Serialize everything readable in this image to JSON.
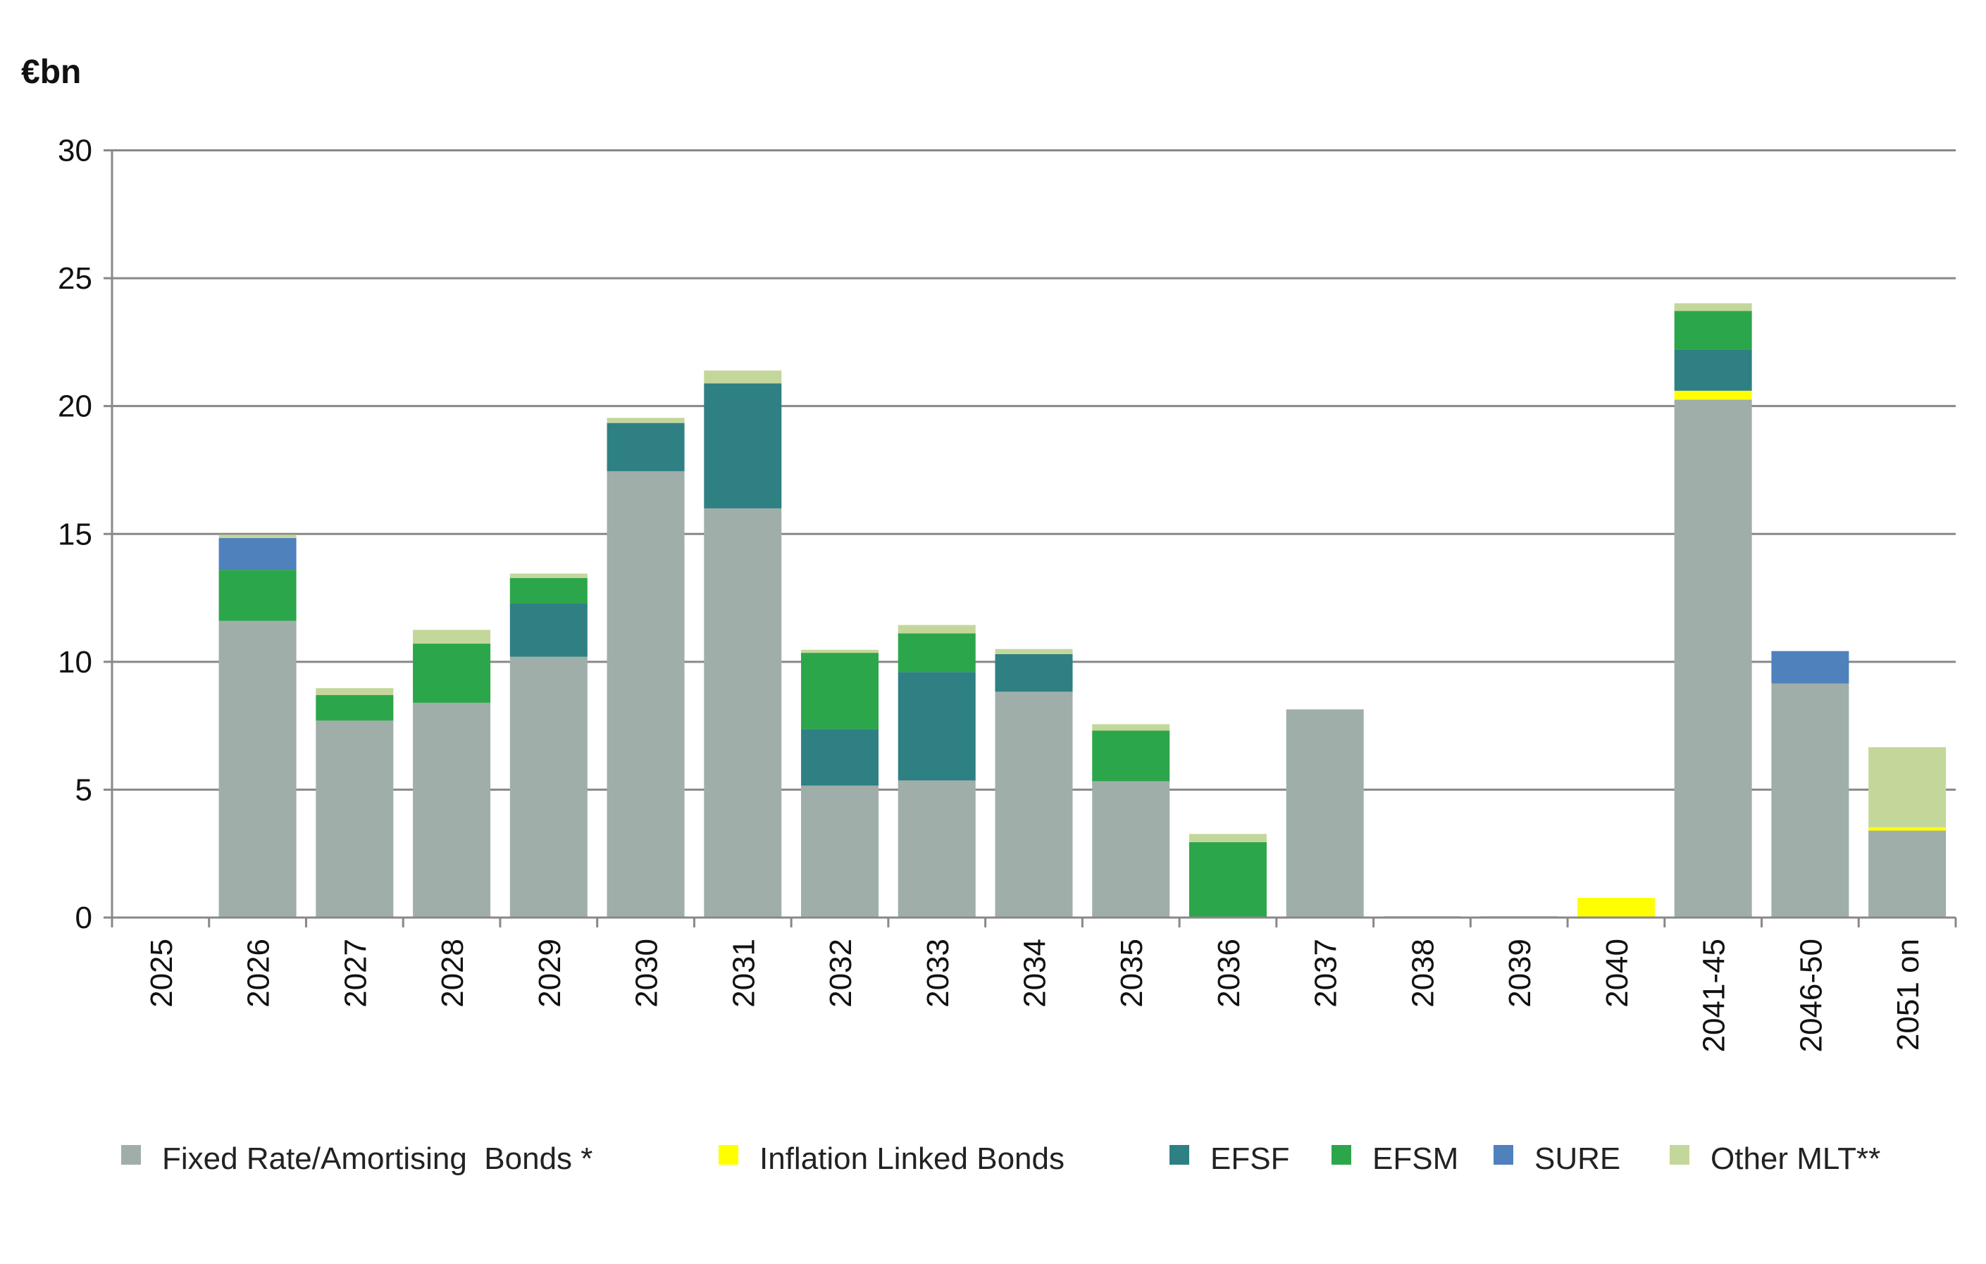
{
  "chart_data": {
    "type": "bar",
    "stacked": true,
    "title": "",
    "ylabel": "€bn",
    "xlabel": "",
    "ylim": [
      0,
      30
    ],
    "yticks": [
      0,
      5,
      10,
      15,
      20,
      25,
      30
    ],
    "grid": true,
    "legend_position": "bottom",
    "categories": [
      "2025",
      "2026",
      "2027",
      "2028",
      "2029",
      "2030",
      "2031",
      "2032",
      "2033",
      "2034",
      "2035",
      "2036",
      "2037",
      "2038",
      "2039",
      "2040",
      "2041-45",
      "2046-50",
      "2051 on"
    ],
    "series": [
      {
        "name": "Fixed Rate/Amortising  Bonds *",
        "color": "#a0aeaa",
        "values": [
          0,
          11.6,
          7.7,
          8.4,
          10.2,
          17.45,
          16.0,
          5.16,
          5.36,
          8.83,
          5.33,
          0,
          8.14,
          0.05,
          0.05,
          0,
          20.25,
          9.15,
          3.4
        ]
      },
      {
        "name": "Inflation Linked Bonds",
        "color": "#ffff00",
        "values": [
          0,
          0,
          0,
          0,
          0,
          0,
          0,
          0,
          0,
          0,
          0,
          0,
          0,
          0,
          0,
          0.77,
          0.35,
          0,
          0.13
        ]
      },
      {
        "name": "EFSF",
        "color": "#2e8083",
        "values": [
          0,
          0,
          0,
          0,
          2.08,
          1.89,
          4.89,
          2.21,
          4.24,
          1.47,
          0,
          0,
          0,
          0,
          0,
          0,
          1.61,
          0,
          0
        ]
      },
      {
        "name": "EFSM",
        "color": "#2ca64a",
        "values": [
          0,
          2.0,
          1.0,
          2.31,
          1.0,
          0,
          0,
          2.98,
          1.51,
          0,
          1.98,
          2.95,
          0,
          0,
          0,
          0,
          1.51,
          0,
          0
        ]
      },
      {
        "name": "SURE",
        "color": "#4f81bd",
        "values": [
          0,
          1.24,
          0,
          0,
          0,
          0,
          0,
          0,
          0,
          0,
          0,
          0,
          0,
          0,
          0,
          0,
          0,
          1.27,
          0
        ]
      },
      {
        "name": "Other MLT**",
        "color": "#c4d79b",
        "values": [
          0,
          0.13,
          0.27,
          0.54,
          0.17,
          0.2,
          0.5,
          0.12,
          0.33,
          0.2,
          0.25,
          0.32,
          0,
          0,
          0,
          0,
          0.3,
          0,
          3.13
        ]
      }
    ]
  }
}
